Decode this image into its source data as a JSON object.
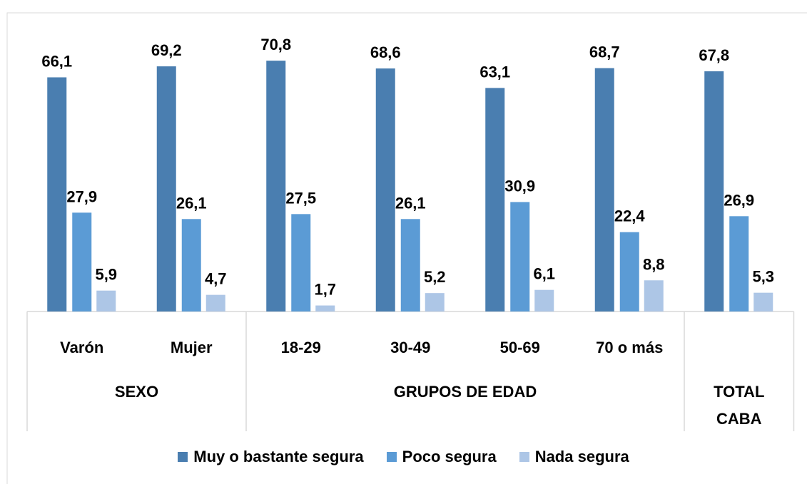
{
  "chart_data": {
    "type": "bar",
    "categories": [
      "Varón",
      "Mujer",
      "18-29",
      "30-49",
      "50-69",
      "70 o más",
      null
    ],
    "groups": [
      {
        "name": "SEXO",
        "size": 2
      },
      {
        "name": "GRUPOS DE EDAD",
        "size": 4
      },
      {
        "name": "TOTAL CABA",
        "size": 1
      }
    ],
    "series": [
      {
        "name": "Muy o bastante segura",
        "color": "#4a7eb0",
        "values": [
          66.1,
          69.2,
          70.8,
          68.6,
          63.1,
          68.7,
          67.8
        ],
        "value_labels": [
          "66,1",
          "69,2",
          "70,8",
          "68,6",
          "63,1",
          "68,7",
          "67,8"
        ]
      },
      {
        "name": "Poco segura",
        "color": "#5b9bd5",
        "values": [
          27.9,
          26.1,
          27.5,
          26.1,
          30.9,
          22.4,
          26.9
        ],
        "value_labels": [
          "27,9",
          "26,1",
          "27,5",
          "26,1",
          "30,9",
          "22,4",
          "26,9"
        ]
      },
      {
        "name": "Nada segura",
        "color": "#adc6e6",
        "values": [
          5.9,
          4.7,
          1.7,
          5.2,
          6.1,
          8.8,
          5.3
        ],
        "value_labels": [
          "5,9",
          "4,7",
          "1,7",
          "5,2",
          "6,1",
          "8,8",
          "5,3"
        ]
      }
    ]
  }
}
